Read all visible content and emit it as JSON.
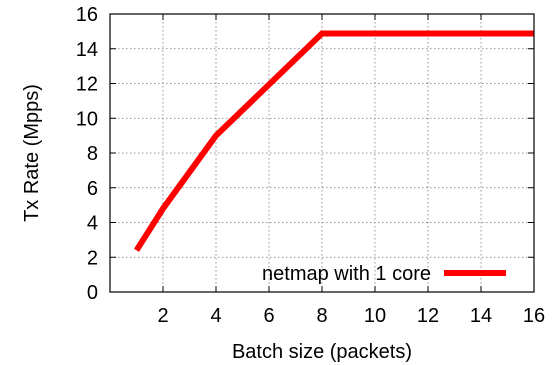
{
  "chart_data": {
    "type": "line",
    "xlabel": "Batch size (packets)",
    "ylabel": "Tx Rate (Mpps)",
    "xlim": [
      0,
      16
    ],
    "ylim": [
      0,
      16
    ],
    "x_ticks": [
      2,
      4,
      6,
      8,
      10,
      12,
      14,
      16
    ],
    "y_ticks": [
      0,
      2,
      4,
      6,
      8,
      10,
      12,
      14,
      16
    ],
    "x_tick_labels": [
      "2",
      "4",
      "6",
      "8",
      "10",
      "12",
      "14",
      "16"
    ],
    "y_tick_labels": [
      "0",
      "2",
      "4",
      "6",
      "8",
      "10",
      "12",
      "14",
      "16"
    ],
    "grid": true,
    "legend_position": "bottom-right",
    "series": [
      {
        "name": "netmap with 1 core",
        "color": "#ff0000",
        "x": [
          1,
          2,
          4,
          8,
          16
        ],
        "y": [
          2.4,
          4.8,
          9.0,
          14.88,
          14.88
        ]
      }
    ]
  }
}
